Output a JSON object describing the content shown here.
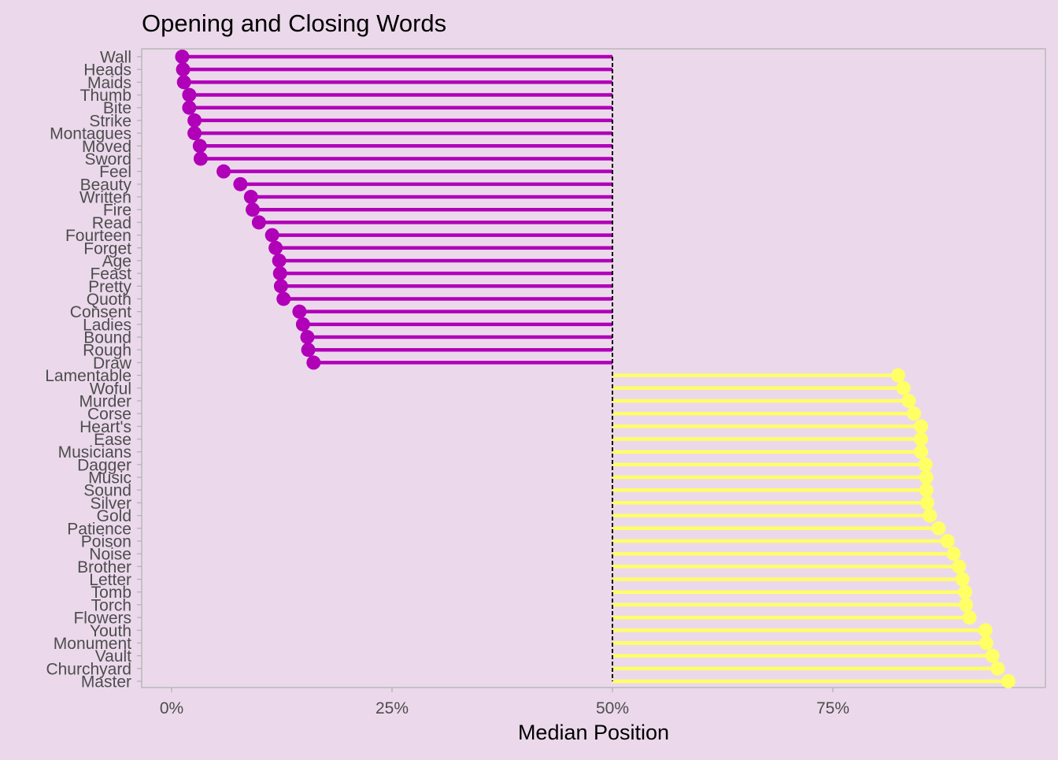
{
  "chart_data": {
    "type": "lollipop",
    "title": "Opening and Closing Words",
    "xlabel": "Median Position",
    "ylabel": "",
    "xlim": [
      -0.03,
      1.0
    ],
    "xticks": [
      0,
      0.25,
      0.5,
      0.75
    ],
    "xtick_labels": [
      "0%",
      "25%",
      "50%",
      "75%"
    ],
    "reference_line": 0.5,
    "colors": {
      "background": "#EBD9EB",
      "opening": "#B000B8",
      "closing": "#FFFF66",
      "axis_text": "#4D4D4D",
      "frame": "#B3B3B3"
    },
    "categories": [
      "Wall",
      "Heads",
      "Maids",
      "Thumb",
      "Bite",
      "Strike",
      "Montagues",
      "Moved",
      "Sword",
      "Feel",
      "Beauty",
      "Written",
      "Fire",
      "Read",
      "Fourteen",
      "Forget",
      "Age",
      "Feast",
      "Pretty",
      "Quoth",
      "Consent",
      "Ladies",
      "Bound",
      "Rough",
      "Draw",
      "Lamentable",
      "Woful",
      "Murder",
      "Corse",
      "Heart's",
      "Ease",
      "Musicians",
      "Dagger",
      "Music",
      "Sound",
      "Silver",
      "Gold",
      "Patience",
      "Poison",
      "Noise",
      "Brother",
      "Letter",
      "Tomb",
      "Torch",
      "Flowers",
      "Youth",
      "Monument",
      "Vault",
      "Churchyard",
      "Master"
    ],
    "values": [
      0.012,
      0.013,
      0.014,
      0.02,
      0.02,
      0.026,
      0.026,
      0.032,
      0.033,
      0.059,
      0.078,
      0.09,
      0.092,
      0.099,
      0.114,
      0.118,
      0.122,
      0.123,
      0.124,
      0.127,
      0.145,
      0.149,
      0.154,
      0.155,
      0.161,
      0.824,
      0.83,
      0.836,
      0.842,
      0.85,
      0.85,
      0.85,
      0.855,
      0.856,
      0.856,
      0.857,
      0.86,
      0.87,
      0.88,
      0.887,
      0.893,
      0.897,
      0.9,
      0.901,
      0.905,
      0.923,
      0.924,
      0.931,
      0.937,
      0.949
    ]
  }
}
